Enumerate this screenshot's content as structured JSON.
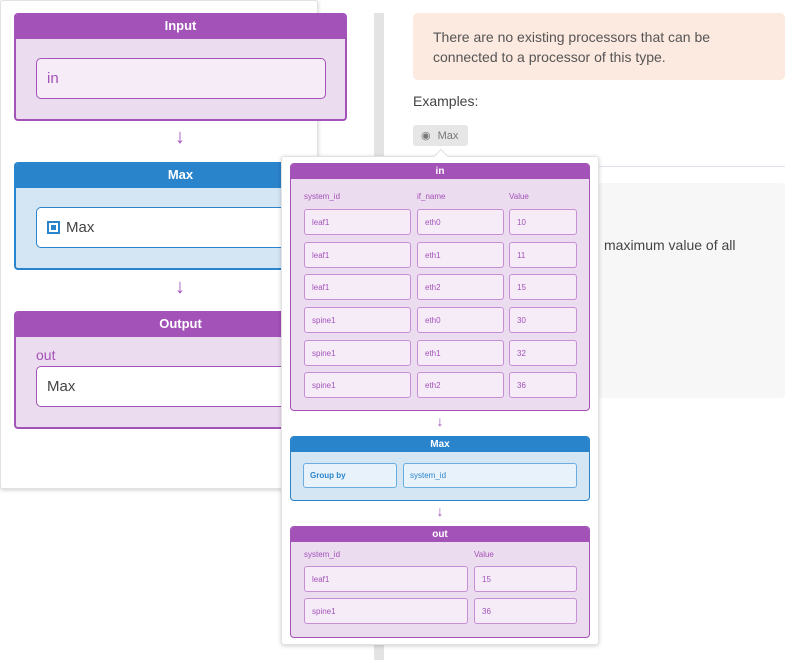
{
  "pipeline": {
    "input": {
      "title": "Input",
      "value": "in"
    },
    "processor": {
      "title": "Max",
      "value": "Max",
      "icon": "processor-icon"
    },
    "output": {
      "title": "Output",
      "label": "out",
      "value": "Max"
    }
  },
  "info": {
    "alert": "There are no existing processors that can be connected to a processor of this type.",
    "examples_label": "Examples:",
    "example_chip": "Max",
    "description_fragment": "maximum value of all"
  },
  "popover": {
    "input_table": {
      "title": "in",
      "headers": [
        "system_id",
        "if_name",
        "Value"
      ],
      "rows": [
        [
          "leaf1",
          "eth0",
          "10"
        ],
        [
          "leaf1",
          "eth1",
          "11"
        ],
        [
          "leaf1",
          "eth2",
          "15"
        ],
        [
          "spine1",
          "eth0",
          "30"
        ],
        [
          "spine1",
          "eth1",
          "32"
        ],
        [
          "spine1",
          "eth2",
          "36"
        ]
      ]
    },
    "processor": {
      "title": "Max",
      "group_by_label": "Group by",
      "group_by_value": "system_id"
    },
    "output_table": {
      "title": "out",
      "headers": [
        "system_id",
        "Value"
      ],
      "rows": [
        [
          "leaf1",
          "15"
        ],
        [
          "spine1",
          "36"
        ]
      ]
    }
  },
  "colors": {
    "purple": "#a352b8",
    "blue": "#2a84cc",
    "alert_bg": "#fce9df"
  }
}
